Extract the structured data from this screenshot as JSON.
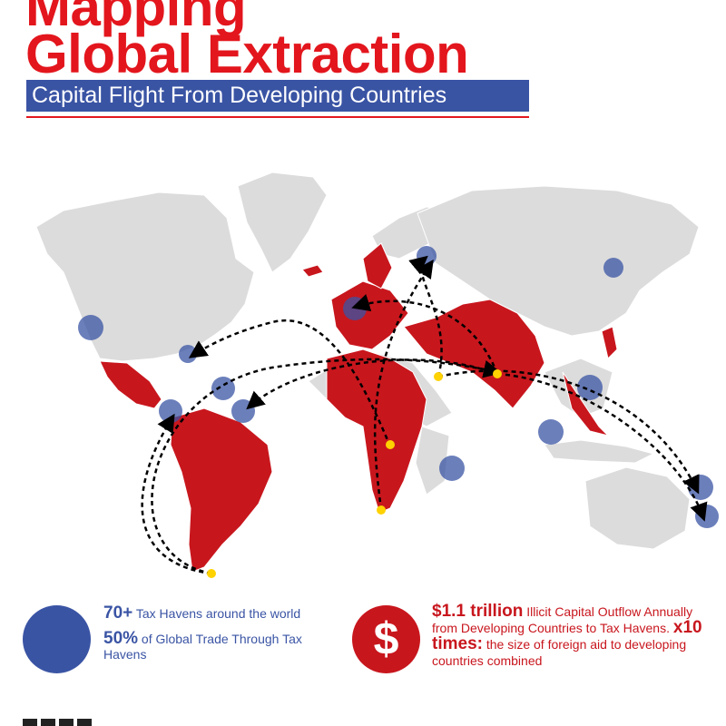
{
  "header": {
    "title_line1": "Mapping",
    "title_line2": "Global Extraction",
    "subtitle": "Capital Flight From Developing Countries"
  },
  "stats": {
    "havens_value": "70+",
    "havens_text": "Tax Havens around the world",
    "trade_value": "50%",
    "trade_text": "of Global Trade Through Tax Havens",
    "outflow_value": "$1.1 trillion",
    "outflow_text": "Illicit Capital Outflow Annually from Developing Countries to Tax Havens.",
    "multiple_value": "x10 times:",
    "multiple_text": "the size of foreign aid to developing countries combined",
    "dollar_symbol": "$"
  },
  "colors": {
    "title_red": "#e3161d",
    "blue": "#3a54a4",
    "developing_red": "#c8161d",
    "land_gray": "#dcdcdc",
    "source_yellow": "#ffd200"
  }
}
